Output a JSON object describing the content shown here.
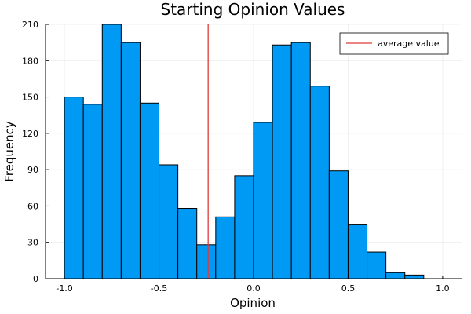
{
  "chart_data": {
    "type": "histogram",
    "title": "Starting Opinion Values",
    "xlabel": "Opinion",
    "ylabel": "Frequency",
    "xlim": [
      -1.1,
      1.1
    ],
    "ylim": [
      0,
      210
    ],
    "x_ticks": [
      -1.0,
      -0.5,
      0.0,
      0.5,
      1.0
    ],
    "x_tick_labels": [
      "-1.0",
      "-0.5",
      "0.0",
      "0.5",
      "1.0"
    ],
    "y_ticks": [
      0,
      30,
      60,
      90,
      120,
      150,
      180,
      210
    ],
    "y_tick_labels": [
      "0",
      "30",
      "60",
      "90",
      "120",
      "150",
      "180",
      "210"
    ],
    "grid": true,
    "bin_edges": [
      -1.0,
      -0.9,
      -0.8,
      -0.7,
      -0.6,
      -0.5,
      -0.4,
      -0.3,
      -0.2,
      -0.1,
      0.0,
      0.1,
      0.2,
      0.3,
      0.4,
      0.5,
      0.6,
      0.7,
      0.8,
      0.9
    ],
    "values": [
      150,
      144,
      210,
      195,
      145,
      94,
      58,
      28,
      51,
      85,
      129,
      193,
      195,
      159,
      89,
      45,
      22,
      5,
      3
    ],
    "bar_color": "#0099f4",
    "average_line": {
      "x": -0.24,
      "color": "#e03a3a",
      "label": "average value"
    },
    "legend_position": "top-right"
  }
}
